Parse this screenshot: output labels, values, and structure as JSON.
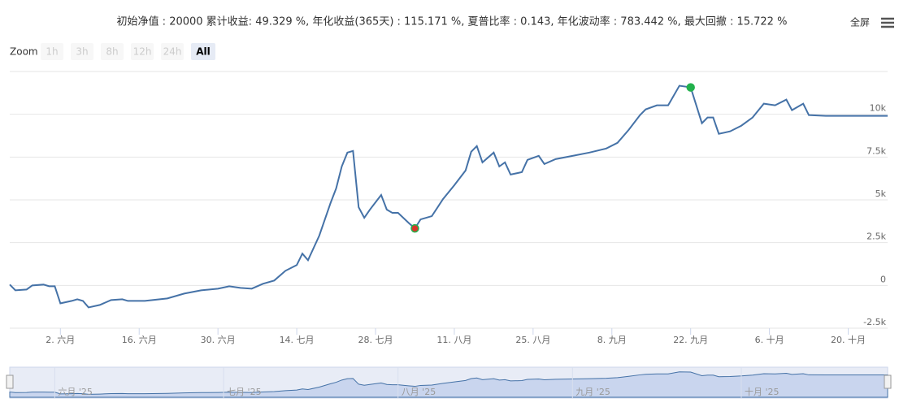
{
  "toolbar": {
    "zoom_label": "Zoom",
    "buttons": [
      {
        "label": "1h",
        "enabled": false
      },
      {
        "label": "3h",
        "enabled": false
      },
      {
        "label": "8h",
        "enabled": false
      },
      {
        "label": "12h",
        "enabled": false
      },
      {
        "label": "24h",
        "enabled": false
      },
      {
        "label": "All",
        "enabled": true,
        "selected": true
      }
    ],
    "fullscreen": "全屏"
  },
  "chart_data": {
    "type": "line",
    "title": "初始净值 : 20000 累计收益: 49.329 %, 年化收益(365天) : 115.171 %, 夏普比率 : 0.143, 年化波动率 : 783.442 %, 最大回撤 : 15.722 %",
    "x": [
      "2025-05-24",
      "2025-05-25",
      "2025-05-27",
      "2025-05-28",
      "2025-05-30",
      "2025-05-31",
      "2025-06-01",
      "2025-06-02",
      "2025-06-04",
      "2025-06-05",
      "2025-06-06",
      "2025-06-07",
      "2025-06-09",
      "2025-06-11",
      "2025-06-13",
      "2025-06-14",
      "2025-06-17",
      "2025-06-21",
      "2025-06-24",
      "2025-06-27",
      "2025-06-30",
      "2025-07-02",
      "2025-07-04",
      "2025-07-06",
      "2025-07-08",
      "2025-07-10",
      "2025-07-12",
      "2025-07-14",
      "2025-07-15",
      "2025-07-16",
      "2025-07-18",
      "2025-07-20",
      "2025-07-21",
      "2025-07-22",
      "2025-07-23",
      "2025-07-24",
      "2025-07-25",
      "2025-07-26",
      "2025-07-27",
      "2025-07-29",
      "2025-07-30",
      "2025-07-31",
      "2025-08-01",
      "2025-08-03",
      "2025-08-04",
      "2025-08-05",
      "2025-08-07",
      "2025-08-09",
      "2025-08-11",
      "2025-08-13",
      "2025-08-14",
      "2025-08-15",
      "2025-08-16",
      "2025-08-18",
      "2025-08-19",
      "2025-08-20",
      "2025-08-21",
      "2025-08-23",
      "2025-08-24",
      "2025-08-26",
      "2025-08-27",
      "2025-08-29",
      "2025-09-01",
      "2025-09-04",
      "2025-09-07",
      "2025-09-09",
      "2025-09-11",
      "2025-09-13",
      "2025-09-14",
      "2025-09-16",
      "2025-09-18",
      "2025-09-20",
      "2025-09-22",
      "2025-09-24",
      "2025-09-25",
      "2025-09-26",
      "2025-09-27",
      "2025-09-29",
      "2025-10-01",
      "2025-10-03",
      "2025-10-05",
      "2025-10-07",
      "2025-10-09",
      "2025-10-10",
      "2025-10-12",
      "2025-10-13",
      "2025-10-16",
      "2025-10-21",
      "2025-10-27"
    ],
    "series": [
      {
        "color": "#4572a7",
        "values": [
          48,
          -286,
          -238,
          0,
          48,
          -48,
          -48,
          -1048,
          -905,
          -810,
          -905,
          -1286,
          -1143,
          -857,
          -810,
          -905,
          -905,
          -762,
          -476,
          -286,
          -190,
          -48,
          -143,
          -190,
          95,
          286,
          857,
          1190,
          1857,
          1476,
          2905,
          4810,
          5667,
          6952,
          7762,
          7857,
          4571,
          3952,
          4429,
          5286,
          4429,
          4238,
          4238,
          3619,
          3333,
          3857,
          4048,
          5048,
          5857,
          6714,
          7810,
          8143,
          7190,
          7762,
          6952,
          7190,
          6476,
          6619,
          7333,
          7571,
          7095,
          7381,
          7571,
          7762,
          8000,
          8333,
          9095,
          9952,
          10286,
          10524,
          10524,
          11667,
          11571,
          9476,
          9810,
          9810,
          8857,
          9000,
          9333,
          9810,
          10619,
          10524,
          10857,
          10238,
          10619,
          9952,
          9905,
          9905,
          9905
        ]
      }
    ],
    "markers": [
      {
        "x": "2025-09-22",
        "color": "#22b14c"
      },
      {
        "x": "2025-08-04",
        "color": "#d9362b"
      }
    ],
    "xlim": [
      "2025-05-24",
      "2025-10-27"
    ],
    "xticks": [
      {
        "value": "2025-06-02",
        "label": "2. 六月"
      },
      {
        "value": "2025-06-16",
        "label": "16. 六月"
      },
      {
        "value": "2025-06-30",
        "label": "30. 六月"
      },
      {
        "value": "2025-07-14",
        "label": "14. 七月"
      },
      {
        "value": "2025-07-28",
        "label": "28. 七月"
      },
      {
        "value": "2025-08-11",
        "label": "11. 八月"
      },
      {
        "value": "2025-08-25",
        "label": "25. 八月"
      },
      {
        "value": "2025-09-08",
        "label": "8. 九月"
      },
      {
        "value": "2025-09-22",
        "label": "22. 九月"
      },
      {
        "value": "2025-10-06",
        "label": "6. 十月"
      },
      {
        "value": "2025-10-20",
        "label": "20. 十月"
      }
    ],
    "ylim": [
      -2500,
      12500
    ],
    "yticks": [
      {
        "value": -2500,
        "label": "-2.5k"
      },
      0,
      {
        "value": 2500,
        "label": "2.5k"
      },
      {
        "value": 5000,
        "label": "5k"
      },
      {
        "value": 7500,
        "label": "7.5k"
      },
      {
        "value": 10000,
        "label": "10k"
      }
    ],
    "grid": true,
    "navigator_xticks": [
      {
        "value": "2025-06-01",
        "label": "六月 '25"
      },
      {
        "value": "2025-07-01",
        "label": "七月 '25"
      },
      {
        "value": "2025-08-01",
        "label": "八月 '25"
      },
      {
        "value": "2025-09-01",
        "label": "九月 '25"
      },
      {
        "value": "2025-10-01",
        "label": "十月 '25"
      }
    ]
  }
}
